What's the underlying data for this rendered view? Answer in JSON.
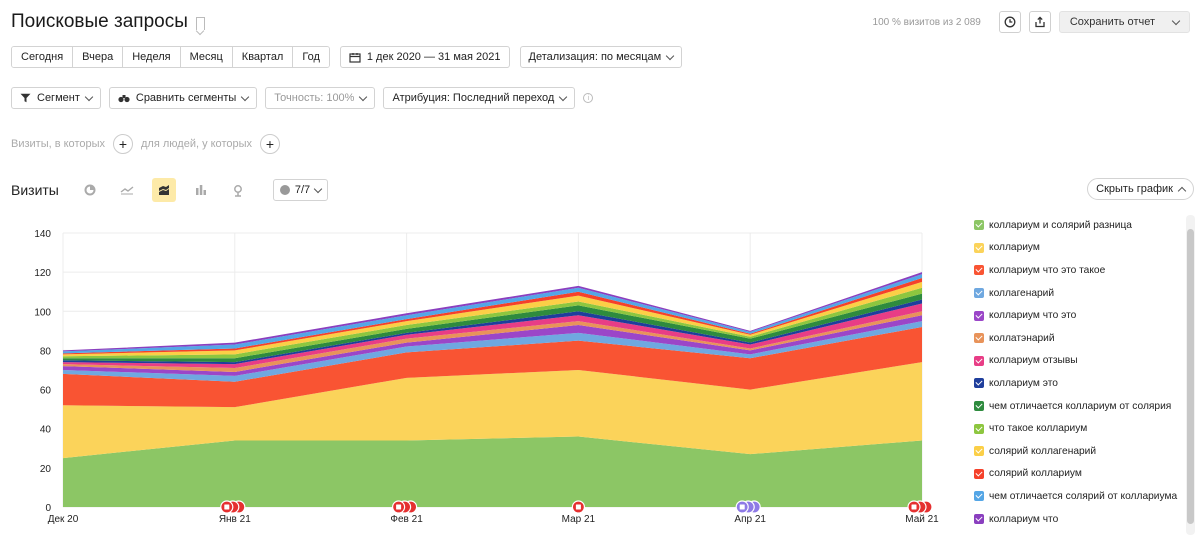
{
  "title": "Поисковые запросы",
  "visits_note": "100 % визитов из 2 089",
  "save_report": "Сохранить отчет",
  "periods": [
    "Сегодня",
    "Вчера",
    "Неделя",
    "Месяц",
    "Квартал",
    "Год"
  ],
  "date_range": "1 дек 2020 — 31 мая 2021",
  "detail": "Детализация: по месяцам",
  "segment": "Сегмент",
  "compare": "Сравнить сегменты",
  "accuracy": "Точность: 100%",
  "attribution": "Атрибуция: Последний переход",
  "visits_where": "Визиты, в которых",
  "people_where": "для людей, у которых",
  "metric_label": "Визиты",
  "series_count": "7/7",
  "hide_chart": "Скрыть график",
  "colors": {
    "accent_active": "#fdeaa8"
  },
  "chart_data": {
    "type": "area",
    "stacked": true,
    "categories": [
      "Дек 20",
      "Янв 21",
      "Фев 21",
      "Мар 21",
      "Апр 21",
      "Май 21"
    ],
    "ylim": [
      0,
      140
    ],
    "yticks": [
      0,
      20,
      40,
      60,
      80,
      100,
      120,
      140
    ],
    "grid": true,
    "legend_position": "right",
    "series": [
      {
        "name": "коллариум и солярий разница",
        "color": "#8cc665",
        "values": [
          25,
          34,
          34,
          36,
          27,
          34
        ]
      },
      {
        "name": "коллариум",
        "color": "#fbd35a",
        "values": [
          27,
          17,
          32,
          34,
          33,
          40
        ]
      },
      {
        "name": "коллариум что это такое",
        "color": "#f95433",
        "values": [
          16,
          13,
          13,
          15,
          16,
          18
        ]
      },
      {
        "name": "коллагенарий",
        "color": "#6fa8e0",
        "values": [
          2,
          3,
          3,
          4,
          2,
          3
        ]
      },
      {
        "name": "коллариум что это",
        "color": "#9b46c8",
        "values": [
          2,
          2,
          2,
          4,
          2,
          3
        ]
      },
      {
        "name": "коллатэнарий",
        "color": "#e8935a",
        "values": [
          1,
          2,
          2,
          2,
          1,
          2
        ]
      },
      {
        "name": "коллариум отзывы",
        "color": "#e83d86",
        "values": [
          1,
          2,
          2,
          3,
          2,
          4
        ]
      },
      {
        "name": "коллариум это",
        "color": "#1f3e9c",
        "values": [
          1,
          1,
          1,
          2,
          1,
          2
        ]
      },
      {
        "name": "чем отличается коллариум от солярия",
        "color": "#2e8b3e",
        "values": [
          1,
          2,
          2,
          3,
          2,
          3
        ]
      },
      {
        "name": "что такое коллариум",
        "color": "#8dc63f",
        "values": [
          1,
          2,
          2,
          2,
          1,
          3
        ]
      },
      {
        "name": "солярий коллагенарий",
        "color": "#fbcf47",
        "values": [
          1,
          2,
          2,
          3,
          1,
          3
        ]
      },
      {
        "name": "солярий коллариум",
        "color": "#f5412a",
        "values": [
          0.5,
          1,
          1,
          2,
          0.5,
          2
        ]
      },
      {
        "name": "чем отличается солярий от коллариума",
        "color": "#54a6e6",
        "values": [
          1,
          2,
          2,
          2,
          1,
          2
        ]
      },
      {
        "name": "коллариум что",
        "color": "#8a3fbf",
        "values": [
          0.5,
          1,
          1,
          1,
          0.5,
          1
        ]
      }
    ]
  },
  "markers": [
    {
      "category_index": 1,
      "color": "#e53030",
      "count": 3
    },
    {
      "category_index": 2,
      "color": "#e53030",
      "count": 3
    },
    {
      "category_index": 3,
      "color": "#e53030",
      "count": 1
    },
    {
      "category_index": 4,
      "color": "#8e7ae6",
      "count": 3
    },
    {
      "category_index": 5,
      "color": "#e53030",
      "count": 3
    }
  ]
}
